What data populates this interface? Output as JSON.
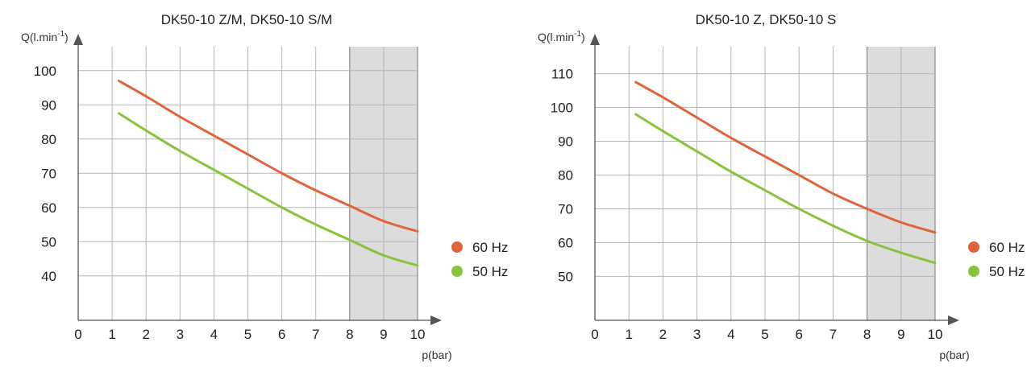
{
  "chart_data": [
    {
      "type": "line",
      "title": "DK50-10 Z/M, DK50-10 S/M",
      "ylabel": "Q(l.min-1)",
      "xlabel": "p(bar)",
      "x_ticks": [
        0,
        1,
        2,
        3,
        4,
        5,
        6,
        7,
        8,
        9,
        10
      ],
      "y_ticks": [
        40,
        50,
        60,
        70,
        80,
        90,
        100
      ],
      "xlim": [
        0,
        10
      ],
      "ylim": [
        27,
        107
      ],
      "grid": true,
      "shaded_x_range": [
        8,
        10
      ],
      "legend_placement": "right",
      "series": [
        {
          "name": "60 Hz",
          "color": "#e0643a",
          "x": [
            1.2,
            2,
            3,
            4,
            5,
            6,
            7,
            8,
            9,
            10
          ],
          "y": [
            97,
            92.5,
            86.5,
            81,
            75.5,
            70,
            65,
            60.5,
            56,
            53
          ]
        },
        {
          "name": "50 Hz",
          "color": "#86c43c",
          "x": [
            1.2,
            2,
            3,
            4,
            5,
            6,
            7,
            8,
            9,
            10
          ],
          "y": [
            87.5,
            82.5,
            76.5,
            71,
            65.5,
            60,
            55,
            50.5,
            46,
            43
          ]
        }
      ]
    },
    {
      "type": "line",
      "title": "DK50-10 Z, DK50-10 S",
      "ylabel": "Q(l.min-1)",
      "xlabel": "p(bar)",
      "x_ticks": [
        0,
        1,
        2,
        3,
        4,
        5,
        6,
        7,
        8,
        9,
        10
      ],
      "y_ticks": [
        50,
        60,
        70,
        80,
        90,
        100,
        110
      ],
      "xlim": [
        0,
        10
      ],
      "ylim": [
        37,
        118
      ],
      "grid": true,
      "shaded_x_range": [
        8,
        10
      ],
      "legend_placement": "right",
      "series": [
        {
          "name": "60 Hz",
          "color": "#e0643a",
          "x": [
            1.2,
            2,
            3,
            4,
            5,
            6,
            7,
            8,
            9,
            10
          ],
          "y": [
            107.5,
            103,
            97,
            91,
            85.5,
            80,
            74.5,
            70,
            66,
            63
          ]
        },
        {
          "name": "50 Hz",
          "color": "#86c43c",
          "x": [
            1.2,
            2,
            3,
            4,
            5,
            6,
            7,
            8,
            9,
            10
          ],
          "y": [
            98,
            93,
            87,
            81,
            75.5,
            70,
            65,
            60.5,
            57,
            54
          ]
        }
      ]
    }
  ]
}
